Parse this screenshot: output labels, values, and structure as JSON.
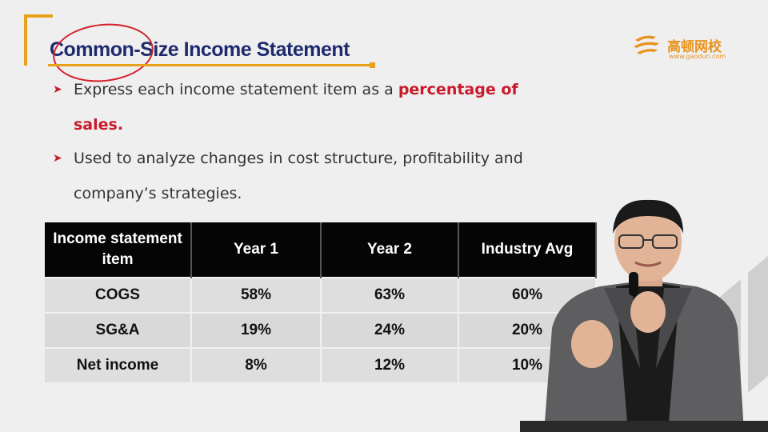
{
  "title": "Common-Size Income Statement",
  "logo": {
    "name_cn": "高顿网校",
    "url": "www.gaodun.com"
  },
  "bullets": [
    {
      "text": "Express each income statement item as a ",
      "highlight": "percentage of sales."
    },
    {
      "text": "Used to analyze changes in cost structure, profitability and company’s strategies.",
      "highlight": ""
    }
  ],
  "table": {
    "headers": [
      "Income statement item",
      "Year 1",
      "Year 2",
      "Industry Avg"
    ],
    "rows": [
      [
        "COGS",
        "58%",
        "63%",
        "60%"
      ],
      [
        "SG&A",
        "19%",
        "24%",
        "20%"
      ],
      [
        "Net income",
        "8%",
        "12%",
        "10%"
      ]
    ]
  },
  "colors": {
    "title": "#1e2a6e",
    "accent": "#e8a21a",
    "highlight": "#c81a2a",
    "header_bg": "#050505"
  },
  "icons": [
    "arrow-bullet-icon",
    "gaodun-logo-icon"
  ]
}
